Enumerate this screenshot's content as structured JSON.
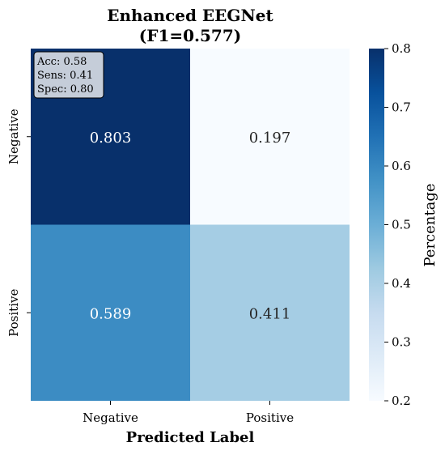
{
  "chart_data": {
    "type": "heatmap",
    "title": "Enhanced EEGNet",
    "subtitle": "(F1=0.577)",
    "xlabel": "Predicted Label",
    "ylabel": "",
    "x_categories": [
      "Negative",
      "Positive"
    ],
    "y_categories": [
      "Negative",
      "Positive"
    ],
    "values": [
      [
        0.803,
        0.197
      ],
      [
        0.589,
        0.411
      ]
    ],
    "value_labels": [
      [
        "0.803",
        "0.197"
      ],
      [
        "0.589",
        "0.411"
      ]
    ],
    "colorbar": {
      "label": "Percentage",
      "range": [
        0.2,
        0.8
      ],
      "ticks": [
        "0.2",
        "0.3",
        "0.4",
        "0.5",
        "0.6",
        "0.7",
        "0.8"
      ],
      "colormap": "Blues"
    },
    "annotation": {
      "lines": [
        "Acc: 0.58",
        "Sens: 0.41",
        "Spec: 0.80"
      ]
    }
  }
}
